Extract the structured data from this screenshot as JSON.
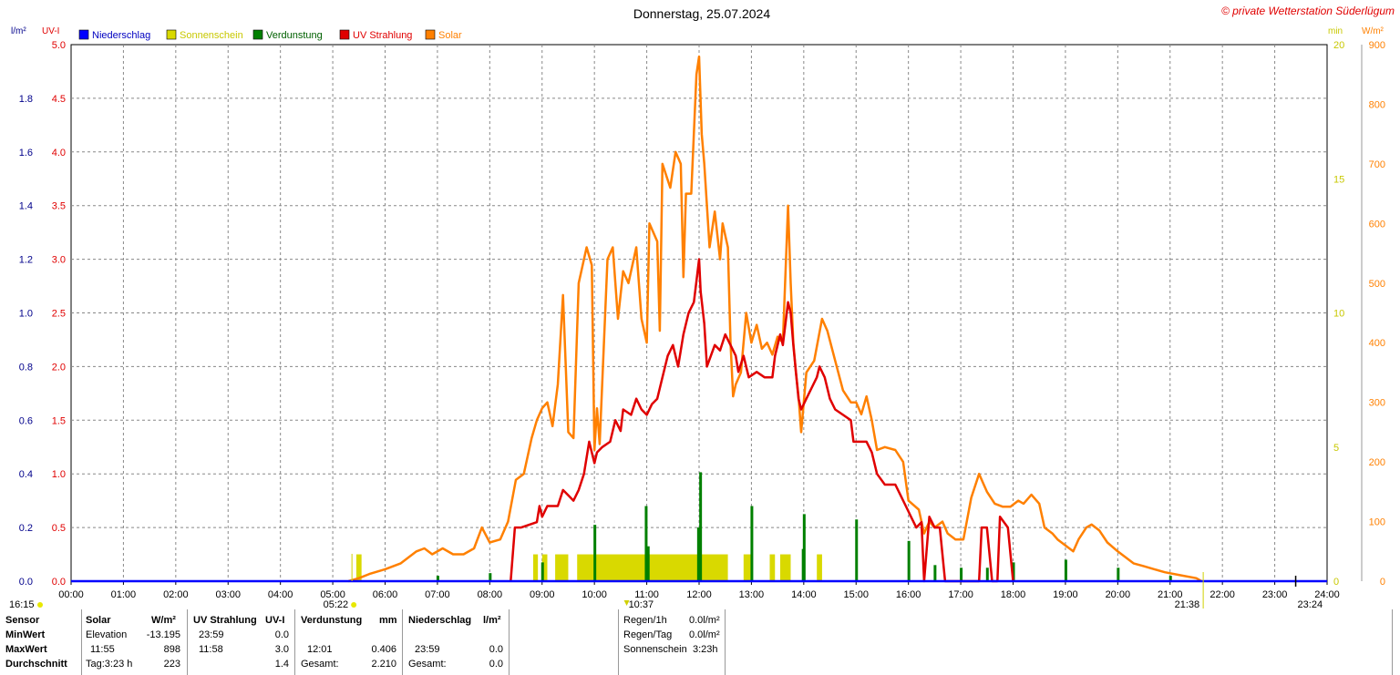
{
  "header": {
    "title": "Donnerstag, 25.07.2024",
    "copyright": "© private Wetterstation Süderlügum"
  },
  "axes": {
    "left1_unit": "l/m²",
    "left2_unit": "UV-I",
    "right1_unit": "min",
    "right2_unit": "W/m²",
    "left1_ticks": [
      "0.0",
      "0.2",
      "0.4",
      "0.6",
      "0.8",
      "1.0",
      "1.2",
      "1.4",
      "1.6",
      "1.8"
    ],
    "left2_ticks": [
      "0.0",
      "0.5",
      "1.0",
      "1.5",
      "2.0",
      "2.5",
      "3.0",
      "3.5",
      "4.0",
      "4.5",
      "5.0"
    ],
    "right1_ticks": [
      "0",
      "5",
      "10",
      "15",
      "20"
    ],
    "right2_ticks": [
      "0",
      "100",
      "200",
      "300",
      "400",
      "500",
      "600",
      "700",
      "800",
      "900"
    ],
    "x_ticks": [
      "00:00",
      "01:00",
      "02:00",
      "03:00",
      "04:00",
      "05:00",
      "06:00",
      "07:00",
      "08:00",
      "09:00",
      "10:00",
      "11:00",
      "12:00",
      "13:00",
      "14:00",
      "15:00",
      "16:00",
      "17:00",
      "18:00",
      "19:00",
      "20:00",
      "21:00",
      "22:00",
      "23:00",
      "24:00"
    ]
  },
  "markers": {
    "moon_set": "16:15",
    "sunrise": "05:22",
    "noon": "10:37",
    "sunset": "21:38",
    "moon_rise": "23:24"
  },
  "colors": {
    "niederschlag": "#0000ff",
    "sonnenschein": "#d9d900",
    "verdunstung": "#008000",
    "uv": "#e00000",
    "solar": "#ff8000"
  },
  "chart_data": {
    "type": "line",
    "x_unit": "hour of day",
    "xlim": [
      0,
      24
    ],
    "legend_position": "top-left",
    "grid": true,
    "series": [
      {
        "name": "Niederschlag",
        "axis": "l/m²",
        "ylim": [
          0,
          2.0
        ],
        "points": [
          [
            0,
            0
          ],
          [
            24,
            0
          ]
        ]
      },
      {
        "name": "Sonnenschein",
        "axis": "min",
        "ylim": [
          0,
          20
        ],
        "bars": [
          [
            5.45,
            5.55,
            1
          ],
          [
            8.83,
            8.92,
            1
          ],
          [
            9.0,
            9.1,
            1
          ],
          [
            9.25,
            9.5,
            1
          ],
          [
            9.67,
            12.55,
            1
          ],
          [
            12.85,
            13.0,
            1
          ],
          [
            13.35,
            13.45,
            1
          ],
          [
            13.55,
            13.75,
            1
          ],
          [
            14.25,
            14.35,
            1
          ]
        ]
      },
      {
        "name": "Verdunstung",
        "axis": "l/m²",
        "ylim": [
          0,
          2.0
        ],
        "bars": [
          [
            7.0,
            0.02
          ],
          [
            8.0,
            0.03
          ],
          [
            9.0,
            0.07
          ],
          [
            10.0,
            0.21
          ],
          [
            10.98,
            0.28
          ],
          [
            11.02,
            0.13
          ],
          [
            11.98,
            0.2
          ],
          [
            12.02,
            0.406
          ],
          [
            13.0,
            0.28
          ],
          [
            14.0,
            0.25
          ],
          [
            13.98,
            0.12
          ],
          [
            15.0,
            0.23
          ],
          [
            16.0,
            0.15
          ],
          [
            16.5,
            0.06
          ],
          [
            17.0,
            0.05
          ],
          [
            17.5,
            0.05
          ],
          [
            18.0,
            0.07
          ],
          [
            19.0,
            0.08
          ],
          [
            20.0,
            0.05
          ],
          [
            21.0,
            0.02
          ]
        ]
      },
      {
        "name": "UV Strahlung",
        "axis": "UV-I",
        "ylim": [
          0,
          5.0
        ],
        "points": [
          [
            8.4,
            0
          ],
          [
            8.48,
            0.5
          ],
          [
            8.6,
            0.5
          ],
          [
            8.9,
            0.55
          ],
          [
            8.95,
            0.7
          ],
          [
            9.0,
            0.6
          ],
          [
            9.1,
            0.7
          ],
          [
            9.3,
            0.7
          ],
          [
            9.4,
            0.85
          ],
          [
            9.5,
            0.8
          ],
          [
            9.6,
            0.75
          ],
          [
            9.7,
            0.85
          ],
          [
            9.8,
            1.0
          ],
          [
            9.9,
            1.3
          ],
          [
            10.0,
            1.1
          ],
          [
            10.05,
            1.2
          ],
          [
            10.15,
            1.25
          ],
          [
            10.3,
            1.3
          ],
          [
            10.4,
            1.5
          ],
          [
            10.5,
            1.4
          ],
          [
            10.55,
            1.6
          ],
          [
            10.7,
            1.55
          ],
          [
            10.8,
            1.7
          ],
          [
            10.9,
            1.6
          ],
          [
            11.0,
            1.55
          ],
          [
            11.1,
            1.65
          ],
          [
            11.2,
            1.7
          ],
          [
            11.3,
            1.9
          ],
          [
            11.4,
            2.1
          ],
          [
            11.5,
            2.2
          ],
          [
            11.6,
            2.0
          ],
          [
            11.7,
            2.3
          ],
          [
            11.8,
            2.5
          ],
          [
            11.9,
            2.6
          ],
          [
            12.0,
            3.0
          ],
          [
            12.03,
            2.7
          ],
          [
            12.1,
            2.4
          ],
          [
            12.15,
            2.0
          ],
          [
            12.3,
            2.2
          ],
          [
            12.4,
            2.15
          ],
          [
            12.5,
            2.3
          ],
          [
            12.6,
            2.2
          ],
          [
            12.7,
            2.1
          ],
          [
            12.75,
            1.95
          ],
          [
            12.85,
            2.1
          ],
          [
            12.95,
            1.9
          ],
          [
            13.1,
            1.95
          ],
          [
            13.25,
            1.9
          ],
          [
            13.4,
            1.9
          ],
          [
            13.45,
            2.1
          ],
          [
            13.55,
            2.3
          ],
          [
            13.6,
            2.2
          ],
          [
            13.7,
            2.6
          ],
          [
            13.75,
            2.5
          ],
          [
            13.8,
            2.2
          ],
          [
            13.9,
            1.7
          ],
          [
            13.95,
            1.6
          ],
          [
            14.05,
            1.7
          ],
          [
            14.15,
            1.8
          ],
          [
            14.25,
            1.9
          ],
          [
            14.3,
            2.0
          ],
          [
            14.4,
            1.9
          ],
          [
            14.5,
            1.7
          ],
          [
            14.6,
            1.6
          ],
          [
            14.75,
            1.55
          ],
          [
            14.9,
            1.5
          ],
          [
            14.95,
            1.3
          ],
          [
            15.1,
            1.3
          ],
          [
            15.2,
            1.3
          ],
          [
            15.3,
            1.2
          ],
          [
            15.4,
            1.0
          ],
          [
            15.55,
            0.9
          ],
          [
            15.75,
            0.9
          ],
          [
            15.85,
            0.8
          ],
          [
            15.95,
            0.7
          ],
          [
            16.05,
            0.6
          ],
          [
            16.15,
            0.5
          ],
          [
            16.25,
            0.55
          ],
          [
            16.3,
            0.0
          ],
          [
            16.4,
            0.6
          ],
          [
            16.5,
            0.5
          ],
          [
            16.6,
            0.5
          ],
          [
            16.7,
            0.0
          ],
          [
            16.75,
            0.0
          ],
          [
            17.35,
            0.0
          ],
          [
            17.4,
            0.5
          ],
          [
            17.5,
            0.5
          ],
          [
            17.6,
            0.0
          ],
          [
            17.7,
            0.0
          ],
          [
            17.75,
            0.6
          ],
          [
            17.9,
            0.5
          ],
          [
            18.0,
            0.0
          ]
        ]
      },
      {
        "name": "Solar",
        "axis": "W/m²",
        "ylim": [
          0,
          900
        ],
        "points": [
          [
            5.3,
            0
          ],
          [
            5.5,
            5
          ],
          [
            5.7,
            12
          ],
          [
            6.0,
            20
          ],
          [
            6.3,
            30
          ],
          [
            6.6,
            50
          ],
          [
            6.75,
            55
          ],
          [
            6.9,
            45
          ],
          [
            7.1,
            55
          ],
          [
            7.3,
            45
          ],
          [
            7.5,
            45
          ],
          [
            7.7,
            55
          ],
          [
            7.85,
            90
          ],
          [
            8.0,
            65
          ],
          [
            8.2,
            70
          ],
          [
            8.35,
            100
          ],
          [
            8.5,
            170
          ],
          [
            8.65,
            180
          ],
          [
            8.8,
            240
          ],
          [
            8.9,
            270
          ],
          [
            9.0,
            290
          ],
          [
            9.1,
            300
          ],
          [
            9.2,
            260
          ],
          [
            9.3,
            330
          ],
          [
            9.4,
            480
          ],
          [
            9.5,
            250
          ],
          [
            9.6,
            240
          ],
          [
            9.7,
            500
          ],
          [
            9.85,
            560
          ],
          [
            9.95,
            530
          ],
          [
            10.0,
            220
          ],
          [
            10.05,
            290
          ],
          [
            10.1,
            230
          ],
          [
            10.25,
            540
          ],
          [
            10.35,
            560
          ],
          [
            10.45,
            440
          ],
          [
            10.55,
            520
          ],
          [
            10.65,
            500
          ],
          [
            10.8,
            560
          ],
          [
            10.9,
            440
          ],
          [
            11.0,
            400
          ],
          [
            11.05,
            600
          ],
          [
            11.2,
            570
          ],
          [
            11.25,
            420
          ],
          [
            11.3,
            700
          ],
          [
            11.45,
            660
          ],
          [
            11.55,
            720
          ],
          [
            11.65,
            700
          ],
          [
            11.7,
            510
          ],
          [
            11.75,
            650
          ],
          [
            11.85,
            650
          ],
          [
            11.95,
            850
          ],
          [
            12.0,
            880
          ],
          [
            12.05,
            750
          ],
          [
            12.1,
            700
          ],
          [
            12.2,
            560
          ],
          [
            12.3,
            620
          ],
          [
            12.4,
            540
          ],
          [
            12.45,
            600
          ],
          [
            12.55,
            560
          ],
          [
            12.6,
            400
          ],
          [
            12.65,
            310
          ],
          [
            12.7,
            330
          ],
          [
            12.8,
            350
          ],
          [
            12.9,
            450
          ],
          [
            13.0,
            400
          ],
          [
            13.1,
            430
          ],
          [
            13.2,
            390
          ],
          [
            13.3,
            400
          ],
          [
            13.4,
            380
          ],
          [
            13.5,
            410
          ],
          [
            13.6,
            400
          ],
          [
            13.7,
            630
          ],
          [
            13.75,
            500
          ],
          [
            13.8,
            400
          ],
          [
            13.85,
            350
          ],
          [
            13.9,
            310
          ],
          [
            13.95,
            250
          ],
          [
            14.05,
            350
          ],
          [
            14.2,
            370
          ],
          [
            14.35,
            440
          ],
          [
            14.45,
            420
          ],
          [
            14.6,
            370
          ],
          [
            14.75,
            320
          ],
          [
            14.9,
            300
          ],
          [
            15.0,
            300
          ],
          [
            15.1,
            280
          ],
          [
            15.2,
            310
          ],
          [
            15.3,
            270
          ],
          [
            15.4,
            220
          ],
          [
            15.55,
            225
          ],
          [
            15.75,
            220
          ],
          [
            15.9,
            200
          ],
          [
            16.0,
            135
          ],
          [
            16.2,
            120
          ],
          [
            16.3,
            80
          ],
          [
            16.4,
            100
          ],
          [
            16.5,
            90
          ],
          [
            16.65,
            100
          ],
          [
            16.75,
            80
          ],
          [
            16.9,
            70
          ],
          [
            17.05,
            70
          ],
          [
            17.2,
            140
          ],
          [
            17.35,
            180
          ],
          [
            17.45,
            160
          ],
          [
            17.5,
            150
          ],
          [
            17.65,
            130
          ],
          [
            17.8,
            125
          ],
          [
            17.95,
            125
          ],
          [
            18.1,
            135
          ],
          [
            18.2,
            130
          ],
          [
            18.35,
            145
          ],
          [
            18.5,
            130
          ],
          [
            18.6,
            90
          ],
          [
            18.75,
            80
          ],
          [
            18.85,
            70
          ],
          [
            19.0,
            60
          ],
          [
            19.15,
            50
          ],
          [
            19.25,
            70
          ],
          [
            19.4,
            90
          ],
          [
            19.5,
            95
          ],
          [
            19.65,
            85
          ],
          [
            19.8,
            65
          ],
          [
            20.0,
            50
          ],
          [
            20.15,
            40
          ],
          [
            20.3,
            30
          ],
          [
            20.5,
            25
          ],
          [
            20.7,
            20
          ],
          [
            20.9,
            15
          ],
          [
            21.2,
            10
          ],
          [
            21.5,
            5
          ],
          [
            21.6,
            0
          ]
        ]
      }
    ]
  },
  "stats": {
    "col_sensor": {
      "h": "Sensor",
      "min": "MinWert",
      "max": "MaxWert",
      "avg": "Durchschnitt"
    },
    "solar": {
      "h": "Solar",
      "unit": "W/m²",
      "min_t": "Elevation",
      "min_v": "-13.195",
      "max_t": "11:55",
      "max_v": "898",
      "avg_t": "Tag:3:23 h",
      "avg_v": "223"
    },
    "uv": {
      "h": "UV Strahlung",
      "unit": "UV-I",
      "min_t": "23:59",
      "min_v": "0.0",
      "max_t": "11:58",
      "max_v": "3.0",
      "avg_v": "1.4"
    },
    "verdunstung": {
      "h": "Verdunstung",
      "unit": "mm",
      "max_t": "12:01",
      "max_v": "0.406",
      "avg_t": "Gesamt:",
      "avg_v": "2.210"
    },
    "niederschlag": {
      "h": "Niederschlag",
      "unit": "l/m²",
      "max_t": "23:59",
      "max_v": "0.0",
      "avg_t": "Gesamt:",
      "avg_v": "0.0"
    },
    "rain": {
      "l1": "Regen/1h",
      "v1": "0.0l/m²",
      "l2": "Regen/Tag",
      "v2": "0.0l/m²",
      "l3": "Sonnenschein",
      "v3": "3:23h"
    }
  }
}
